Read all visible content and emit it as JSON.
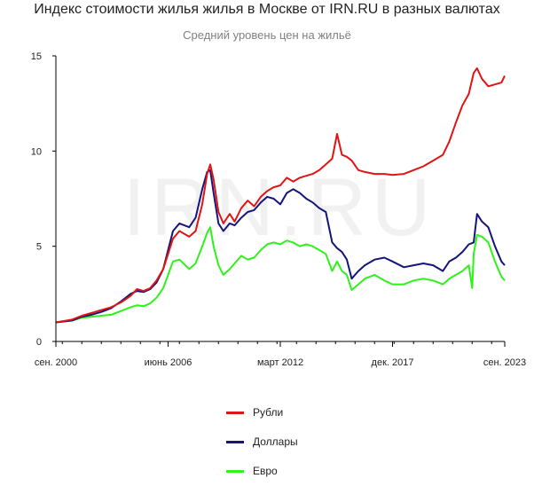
{
  "title": "Индекс стоимости жилья жилья в Москве от IRN.RU в разных валютах",
  "subtitle": "Средний уровень цен на жильё",
  "watermark": "IRN.RU",
  "chart_data": {
    "type": "line",
    "ylim": [
      0,
      15
    ],
    "yticks": [
      0,
      5,
      10,
      15
    ],
    "xlim": [
      2000.67,
      2023.67
    ],
    "xticks": [
      {
        "value": 2000.67,
        "label": "сен. 2000"
      },
      {
        "value": 2006.42,
        "label": "июнь 2006"
      },
      {
        "value": 2012.17,
        "label": "март 2012"
      },
      {
        "value": 2017.92,
        "label": "дек. 2017"
      },
      {
        "value": 2023.67,
        "label": "сен. 2023"
      }
    ],
    "grid": false,
    "legend_position": "bottom",
    "series": [
      {
        "name": "Рубли",
        "color": "#e01414",
        "points": [
          [
            2000.67,
            1.0
          ],
          [
            2001.5,
            1.15
          ],
          [
            2002.0,
            1.35
          ],
          [
            2002.5,
            1.5
          ],
          [
            2003.0,
            1.65
          ],
          [
            2003.5,
            1.8
          ],
          [
            2004.0,
            2.05
          ],
          [
            2004.5,
            2.4
          ],
          [
            2004.83,
            2.75
          ],
          [
            2005.17,
            2.65
          ],
          [
            2005.5,
            2.8
          ],
          [
            2005.83,
            3.2
          ],
          [
            2006.17,
            3.8
          ],
          [
            2006.42,
            4.6
          ],
          [
            2006.67,
            5.4
          ],
          [
            2007.0,
            5.8
          ],
          [
            2007.5,
            5.5
          ],
          [
            2007.83,
            5.8
          ],
          [
            2008.17,
            7.2
          ],
          [
            2008.42,
            8.8
          ],
          [
            2008.58,
            9.3
          ],
          [
            2008.75,
            8.5
          ],
          [
            2009.0,
            6.8
          ],
          [
            2009.25,
            6.2
          ],
          [
            2009.58,
            6.7
          ],
          [
            2009.83,
            6.3
          ],
          [
            2010.17,
            7.0
          ],
          [
            2010.5,
            7.4
          ],
          [
            2010.83,
            7.1
          ],
          [
            2011.17,
            7.6
          ],
          [
            2011.5,
            7.9
          ],
          [
            2011.83,
            8.1
          ],
          [
            2012.17,
            8.2
          ],
          [
            2012.5,
            8.6
          ],
          [
            2012.83,
            8.4
          ],
          [
            2013.17,
            8.6
          ],
          [
            2013.5,
            8.7
          ],
          [
            2013.83,
            8.8
          ],
          [
            2014.17,
            9.0
          ],
          [
            2014.5,
            9.3
          ],
          [
            2014.83,
            9.6
          ],
          [
            2015.08,
            10.9
          ],
          [
            2015.33,
            9.8
          ],
          [
            2015.58,
            9.7
          ],
          [
            2015.83,
            9.5
          ],
          [
            2016.17,
            9.0
          ],
          [
            2016.5,
            8.9
          ],
          [
            2017.0,
            8.8
          ],
          [
            2017.5,
            8.8
          ],
          [
            2017.92,
            8.75
          ],
          [
            2018.5,
            8.8
          ],
          [
            2019.0,
            9.0
          ],
          [
            2019.5,
            9.2
          ],
          [
            2020.0,
            9.5
          ],
          [
            2020.5,
            9.8
          ],
          [
            2020.83,
            10.5
          ],
          [
            2021.17,
            11.5
          ],
          [
            2021.5,
            12.4
          ],
          [
            2021.83,
            13.0
          ],
          [
            2022.08,
            14.1
          ],
          [
            2022.25,
            14.35
          ],
          [
            2022.5,
            13.8
          ],
          [
            2022.83,
            13.4
          ],
          [
            2023.17,
            13.5
          ],
          [
            2023.5,
            13.6
          ],
          [
            2023.67,
            13.95
          ]
        ]
      },
      {
        "name": "Доллары",
        "color": "#14147a",
        "points": [
          [
            2000.67,
            1.0
          ],
          [
            2001.5,
            1.1
          ],
          [
            2002.0,
            1.3
          ],
          [
            2002.5,
            1.4
          ],
          [
            2003.0,
            1.55
          ],
          [
            2003.5,
            1.75
          ],
          [
            2004.0,
            2.1
          ],
          [
            2004.5,
            2.5
          ],
          [
            2004.83,
            2.65
          ],
          [
            2005.17,
            2.6
          ],
          [
            2005.5,
            2.75
          ],
          [
            2005.83,
            3.1
          ],
          [
            2006.17,
            3.8
          ],
          [
            2006.42,
            4.8
          ],
          [
            2006.67,
            5.8
          ],
          [
            2007.0,
            6.2
          ],
          [
            2007.5,
            6.0
          ],
          [
            2007.83,
            6.5
          ],
          [
            2008.17,
            8.0
          ],
          [
            2008.42,
            8.9
          ],
          [
            2008.58,
            9.0
          ],
          [
            2008.75,
            7.8
          ],
          [
            2009.0,
            6.2
          ],
          [
            2009.25,
            5.8
          ],
          [
            2009.58,
            6.2
          ],
          [
            2009.83,
            6.1
          ],
          [
            2010.17,
            6.5
          ],
          [
            2010.5,
            6.8
          ],
          [
            2010.83,
            6.9
          ],
          [
            2011.17,
            7.3
          ],
          [
            2011.5,
            7.6
          ],
          [
            2011.83,
            7.5
          ],
          [
            2012.17,
            7.2
          ],
          [
            2012.5,
            7.8
          ],
          [
            2012.83,
            8.0
          ],
          [
            2013.17,
            7.8
          ],
          [
            2013.5,
            7.5
          ],
          [
            2013.83,
            7.3
          ],
          [
            2014.17,
            7.0
          ],
          [
            2014.5,
            6.8
          ],
          [
            2014.83,
            5.2
          ],
          [
            2015.08,
            4.9
          ],
          [
            2015.33,
            4.7
          ],
          [
            2015.58,
            4.3
          ],
          [
            2015.83,
            3.3
          ],
          [
            2016.17,
            3.7
          ],
          [
            2016.5,
            4.0
          ],
          [
            2017.0,
            4.3
          ],
          [
            2017.5,
            4.4
          ],
          [
            2017.92,
            4.2
          ],
          [
            2018.5,
            3.9
          ],
          [
            2019.0,
            4.0
          ],
          [
            2019.5,
            4.1
          ],
          [
            2020.0,
            4.0
          ],
          [
            2020.5,
            3.7
          ],
          [
            2020.83,
            4.2
          ],
          [
            2021.17,
            4.4
          ],
          [
            2021.5,
            4.7
          ],
          [
            2021.83,
            5.1
          ],
          [
            2022.08,
            5.2
          ],
          [
            2022.25,
            6.7
          ],
          [
            2022.5,
            6.3
          ],
          [
            2022.83,
            6.0
          ],
          [
            2023.17,
            5.0
          ],
          [
            2023.5,
            4.2
          ],
          [
            2023.67,
            4.0
          ]
        ]
      },
      {
        "name": "Евро",
        "color": "#2ef21a",
        "points": [
          [
            2000.67,
            1.0
          ],
          [
            2001.5,
            1.1
          ],
          [
            2002.0,
            1.25
          ],
          [
            2002.5,
            1.3
          ],
          [
            2003.0,
            1.35
          ],
          [
            2003.5,
            1.4
          ],
          [
            2004.0,
            1.6
          ],
          [
            2004.5,
            1.8
          ],
          [
            2004.83,
            1.9
          ],
          [
            2005.17,
            1.85
          ],
          [
            2005.5,
            2.0
          ],
          [
            2005.83,
            2.3
          ],
          [
            2006.17,
            2.8
          ],
          [
            2006.42,
            3.5
          ],
          [
            2006.67,
            4.2
          ],
          [
            2007.0,
            4.3
          ],
          [
            2007.5,
            3.8
          ],
          [
            2007.83,
            4.1
          ],
          [
            2008.17,
            5.0
          ],
          [
            2008.42,
            5.7
          ],
          [
            2008.58,
            6.0
          ],
          [
            2008.75,
            5.0
          ],
          [
            2009.0,
            4.0
          ],
          [
            2009.25,
            3.5
          ],
          [
            2009.58,
            3.8
          ],
          [
            2009.83,
            4.1
          ],
          [
            2010.17,
            4.5
          ],
          [
            2010.5,
            4.3
          ],
          [
            2010.83,
            4.4
          ],
          [
            2011.17,
            4.8
          ],
          [
            2011.5,
            5.1
          ],
          [
            2011.83,
            5.2
          ],
          [
            2012.17,
            5.1
          ],
          [
            2012.5,
            5.3
          ],
          [
            2012.83,
            5.2
          ],
          [
            2013.17,
            5.0
          ],
          [
            2013.5,
            5.1
          ],
          [
            2013.83,
            5.0
          ],
          [
            2014.17,
            4.8
          ],
          [
            2014.5,
            4.6
          ],
          [
            2014.83,
            3.7
          ],
          [
            2015.08,
            4.2
          ],
          [
            2015.33,
            3.7
          ],
          [
            2015.58,
            3.5
          ],
          [
            2015.83,
            2.7
          ],
          [
            2016.17,
            3.0
          ],
          [
            2016.5,
            3.3
          ],
          [
            2017.0,
            3.5
          ],
          [
            2017.5,
            3.2
          ],
          [
            2017.92,
            3.0
          ],
          [
            2018.5,
            3.0
          ],
          [
            2019.0,
            3.2
          ],
          [
            2019.5,
            3.3
          ],
          [
            2020.0,
            3.2
          ],
          [
            2020.5,
            3.0
          ],
          [
            2020.83,
            3.3
          ],
          [
            2021.17,
            3.5
          ],
          [
            2021.5,
            3.7
          ],
          [
            2021.83,
            4.0
          ],
          [
            2022.0,
            2.8
          ],
          [
            2022.08,
            4.6
          ],
          [
            2022.25,
            5.6
          ],
          [
            2022.5,
            5.5
          ],
          [
            2022.83,
            5.2
          ],
          [
            2023.17,
            4.2
          ],
          [
            2023.5,
            3.4
          ],
          [
            2023.67,
            3.2
          ]
        ]
      }
    ]
  }
}
